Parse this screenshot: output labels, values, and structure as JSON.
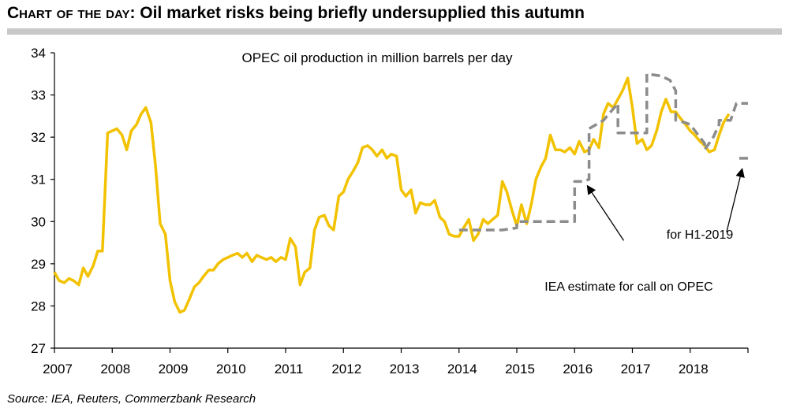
{
  "header": {
    "prefix": "Chart of the day:",
    "title": "Oil market risks being briefly undersupplied this autumn"
  },
  "source": "Source: IEA, Reuters, Commerzbank Research",
  "chart_data": {
    "type": "line",
    "title": "OPEC oil production in million barrels per day",
    "xlabel": "",
    "ylabel": "",
    "xlim": [
      2007.0,
      2019.0
    ],
    "ylim": [
      27,
      34
    ],
    "y_ticks": [
      27,
      28,
      29,
      30,
      31,
      32,
      33,
      34
    ],
    "x_ticks": [
      2007,
      2008,
      2009,
      2010,
      2011,
      2012,
      2013,
      2014,
      2015,
      2016,
      2017,
      2018
    ],
    "grid": false,
    "colors": {
      "production": "#f2c200",
      "call": "#8c8c8c"
    },
    "series": [
      {
        "name": "",
        "style": "solid",
        "x": [
          2007.0,
          2007.08,
          2007.17,
          2007.25,
          2007.33,
          2007.42,
          2007.5,
          2007.58,
          2007.67,
          2007.75,
          2007.83,
          2007.92,
          2008.0,
          2008.08,
          2008.17,
          2008.25,
          2008.33,
          2008.42,
          2008.5,
          2008.58,
          2008.67,
          2008.75,
          2008.83,
          2008.92,
          2009.0,
          2009.08,
          2009.17,
          2009.25,
          2009.33,
          2009.42,
          2009.5,
          2009.58,
          2009.67,
          2009.75,
          2009.83,
          2009.92,
          2010.0,
          2010.08,
          2010.17,
          2010.25,
          2010.33,
          2010.42,
          2010.5,
          2010.58,
          2010.67,
          2010.75,
          2010.83,
          2010.92,
          2011.0,
          2011.08,
          2011.17,
          2011.25,
          2011.33,
          2011.42,
          2011.5,
          2011.58,
          2011.67,
          2011.75,
          2011.83,
          2011.92,
          2012.0,
          2012.08,
          2012.17,
          2012.25,
          2012.33,
          2012.42,
          2012.5,
          2012.58,
          2012.67,
          2012.75,
          2012.83,
          2012.92,
          2013.0,
          2013.08,
          2013.17,
          2013.25,
          2013.33,
          2013.42,
          2013.5,
          2013.58,
          2013.67,
          2013.75,
          2013.83,
          2013.92,
          2014.0,
          2014.08,
          2014.17,
          2014.25,
          2014.33,
          2014.42,
          2014.5,
          2014.58,
          2014.67,
          2014.75,
          2014.83,
          2014.92,
          2015.0,
          2015.08,
          2015.17,
          2015.25,
          2015.33,
          2015.42,
          2015.5,
          2015.58,
          2015.67,
          2015.75,
          2015.83,
          2015.92,
          2016.0,
          2016.08,
          2016.17,
          2016.25,
          2016.33,
          2016.42,
          2016.5,
          2016.58,
          2016.67,
          2016.75,
          2016.83,
          2016.92,
          2017.0,
          2017.08,
          2017.17,
          2017.25,
          2017.33,
          2017.42,
          2017.5,
          2017.58,
          2017.67,
          2017.75,
          2017.83,
          2017.92,
          2018.0,
          2018.08,
          2018.17,
          2018.25,
          2018.33,
          2018.42,
          2018.5,
          2018.58,
          2018.67
        ],
        "y": [
          28.8,
          28.6,
          28.55,
          28.65,
          28.6,
          28.5,
          28.9,
          28.7,
          28.95,
          29.3,
          29.3,
          32.1,
          32.15,
          32.2,
          32.05,
          31.7,
          32.15,
          32.3,
          32.55,
          32.7,
          32.35,
          31.3,
          29.95,
          29.7,
          28.6,
          28.1,
          27.85,
          27.9,
          28.15,
          28.45,
          28.55,
          28.7,
          28.85,
          28.85,
          29.0,
          29.1,
          29.15,
          29.2,
          29.25,
          29.15,
          29.25,
          29.05,
          29.2,
          29.15,
          29.1,
          29.15,
          29.05,
          29.15,
          29.1,
          29.6,
          29.4,
          28.5,
          28.8,
          28.9,
          29.8,
          30.1,
          30.15,
          29.9,
          29.8,
          30.6,
          30.7,
          31.0,
          31.2,
          31.4,
          31.75,
          31.8,
          31.7,
          31.55,
          31.7,
          31.5,
          31.6,
          31.55,
          30.75,
          30.6,
          30.75,
          30.2,
          30.45,
          30.4,
          30.4,
          30.5,
          30.1,
          30.0,
          29.7,
          29.65,
          29.65,
          29.85,
          30.05,
          29.55,
          29.7,
          30.05,
          29.95,
          30.05,
          30.15,
          30.95,
          30.7,
          30.25,
          29.9,
          30.4,
          29.95,
          30.4,
          31.0,
          31.3,
          31.5,
          32.05,
          31.7,
          31.7,
          31.65,
          31.75,
          31.6,
          31.9,
          31.65,
          31.7,
          31.95,
          31.75,
          32.55,
          32.8,
          32.7,
          32.9,
          33.1,
          33.4,
          32.7,
          31.85,
          31.95,
          31.7,
          31.8,
          32.15,
          32.6,
          32.9,
          32.6,
          32.6,
          32.45,
          32.3,
          32.15,
          32.05,
          31.9,
          31.8,
          31.65,
          31.7,
          32.05,
          32.35,
          32.55
        ]
      },
      {
        "name": "",
        "style": "dashed",
        "x": [
          2014.0,
          2014.25,
          2014.25,
          2014.5,
          2014.75,
          2015.0,
          2015.0,
          2015.25,
          2015.5,
          2015.75,
          2016.0,
          2016.0,
          2016.15,
          2016.25,
          2016.25,
          2016.5,
          2016.75,
          2016.75,
          2017.0,
          2017.25,
          2017.25,
          2017.5,
          2017.65,
          2017.75,
          2017.75,
          2017.9,
          2018.0,
          2018.25,
          2018.25,
          2018.4,
          2018.5,
          2018.5,
          2018.7,
          2018.8,
          2018.85,
          2019.0
        ],
        "y": [
          29.8,
          29.8,
          29.8,
          29.8,
          29.8,
          29.85,
          30.0,
          30.0,
          30.0,
          30.0,
          30.0,
          30.95,
          30.95,
          31.0,
          32.2,
          32.4,
          32.8,
          32.1,
          32.1,
          32.1,
          33.5,
          33.45,
          33.35,
          33.1,
          32.4,
          32.35,
          32.3,
          31.85,
          31.7,
          32.0,
          32.3,
          32.4,
          32.4,
          32.8,
          32.8,
          32.8
        ]
      },
      {
        "name": "",
        "style": "dashed",
        "x": [
          2018.85,
          2019.0
        ],
        "y": [
          31.5,
          31.5
        ]
      }
    ],
    "annotations": [
      {
        "id": "iea",
        "text": "IEA estimate for call on OPEC",
        "point": [
          2016.22,
          30.85
        ],
        "label_anchor": [
          2016.85,
          29.55
        ]
      },
      {
        "id": "h1",
        "text": "for H1-2019",
        "point": [
          2018.9,
          31.25
        ],
        "label_anchor": [
          2018.63,
          29.75
        ]
      }
    ]
  }
}
